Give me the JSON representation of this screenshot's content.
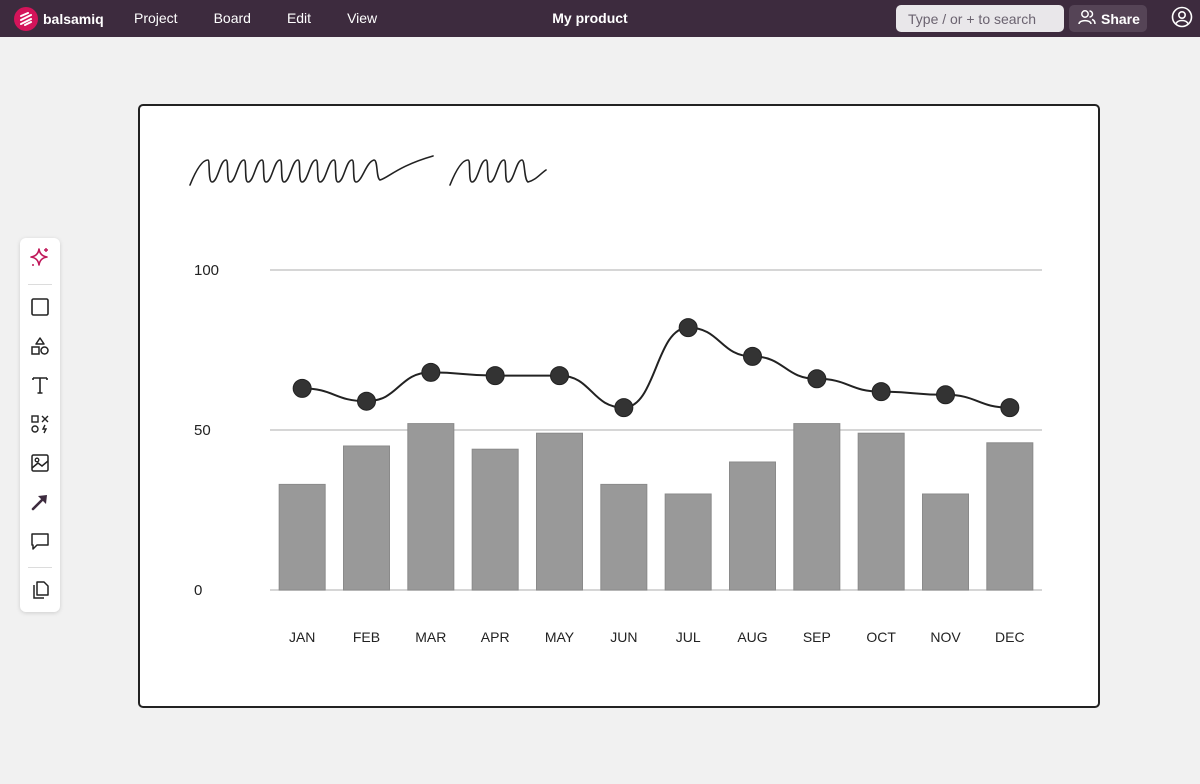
{
  "app": {
    "brand": "balsamiq",
    "title": "My product"
  },
  "menu": [
    {
      "name": "menu-project",
      "label": "Project"
    },
    {
      "name": "menu-board",
      "label": "Board"
    },
    {
      "name": "menu-edit",
      "label": "Edit"
    },
    {
      "name": "menu-view",
      "label": "View"
    }
  ],
  "search": {
    "placeholder": "Type / or + to search"
  },
  "share": {
    "label": "Share"
  },
  "toolbar": {
    "tools": [
      "sparkle-icon",
      "rectangle-icon",
      "shapes-icon",
      "text-icon",
      "icons-library-icon",
      "image-icon",
      "arrow-icon",
      "comment-icon",
      "copy-icon"
    ]
  },
  "colors": {
    "topbar": "#3d2b3e",
    "brand": "#d4145a",
    "bars": "#999999",
    "line": "#222222"
  },
  "chart_data": {
    "type": "bar",
    "categories": [
      "JAN",
      "FEB",
      "MAR",
      "APR",
      "MAY",
      "JUN",
      "JUL",
      "AUG",
      "SEP",
      "OCT",
      "NOV",
      "DEC"
    ],
    "series": [
      {
        "type": "bar",
        "values": [
          33,
          45,
          52,
          44,
          49,
          33,
          30,
          40,
          52,
          49,
          30,
          46
        ]
      },
      {
        "type": "line",
        "values": [
          63,
          59,
          68,
          67,
          67,
          57,
          82,
          73,
          66,
          62,
          61,
          57
        ]
      }
    ],
    "yticks": [
      "0",
      "50",
      "100"
    ],
    "ylim": [
      0,
      100
    ],
    "grid": true,
    "legend": "none"
  }
}
